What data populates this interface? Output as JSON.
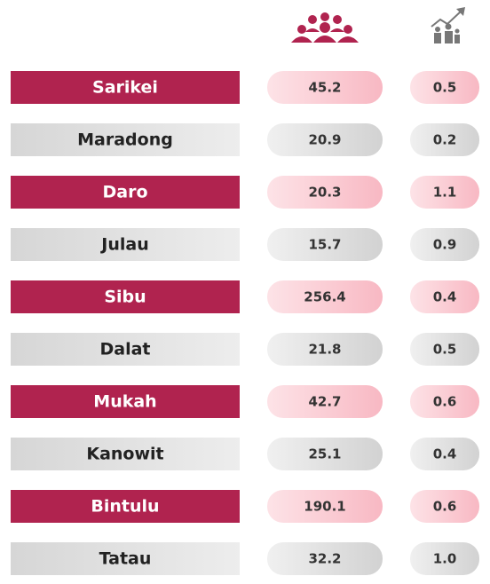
{
  "table": {
    "rows": [
      [
        "Sarikei",
        "45.2",
        "0.5"
      ],
      [
        "Maradong",
        "20.9",
        "0.2"
      ],
      [
        "Daro",
        "20.3",
        "1.1"
      ],
      [
        "Julau",
        "15.7",
        "0.9"
      ],
      [
        "Sibu",
        "256.4",
        "0.4"
      ],
      [
        "Dalat",
        "21.8",
        "0.5"
      ],
      [
        "Mukah",
        "42.7",
        "0.6"
      ],
      [
        "Kanowit",
        "25.1",
        "0.4"
      ],
      [
        "Bintulu",
        "190.1",
        "0.6"
      ],
      [
        "Tatau",
        "32.2",
        "1.0"
      ]
    ]
  }
}
